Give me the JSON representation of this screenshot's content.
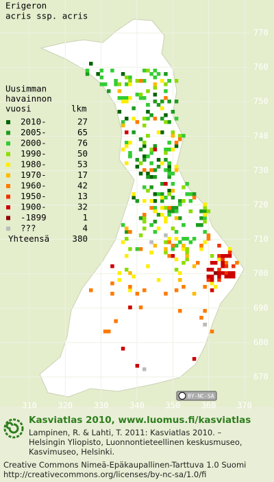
{
  "map": {
    "title": [
      "Erigeron",
      "acris ssp. acris"
    ],
    "legend": {
      "heading": [
        "Uusimman",
        "havainnon",
        "vuosi"
      ],
      "count_heading": "lkm",
      "items": [
        {
          "period": "2010-",
          "count": 27,
          "color": "#006400"
        },
        {
          "period": "2005-",
          "count": 65,
          "color": "#1f9a1f"
        },
        {
          "period": "2000-",
          "count": 76,
          "color": "#33cc33"
        },
        {
          "period": "1990-",
          "count": 50,
          "color": "#8ddc00"
        },
        {
          "period": "1980-",
          "count": 53,
          "color": "#ffee00"
        },
        {
          "period": "1970-",
          "count": 17,
          "color": "#ffbb00"
        },
        {
          "period": "1960-",
          "count": 42,
          "color": "#ff7a00"
        },
        {
          "period": "1950-",
          "count": 13,
          "color": "#ee3300"
        },
        {
          "period": "1900-",
          "count": 32,
          "color": "#cc0000"
        },
        {
          "period": "-1899",
          "count": 1,
          "color": "#8b0000"
        },
        {
          "period": "???",
          "count": 4,
          "color": "#bbbbbb"
        }
      ],
      "total_label": "Yhteensä",
      "total": 380
    },
    "yticks": [
      770,
      760,
      750,
      740,
      730,
      720,
      710,
      700,
      690,
      680,
      670
    ],
    "xticks": [
      310,
      320,
      330,
      340,
      350,
      360,
      370
    ],
    "license_badge": "BY-NC-SA"
  },
  "footer": {
    "brand": "Kasviatlas 2010, www.luomus.fi/kasviatlas",
    "citation": [
      "Lampinen, R. & Lahti, T. 2011: Kasviatlas 2010. –",
      "Helsingin Yliopisto, Luonnontieteellinen keskusmuseo,",
      "Kasvimuseo, Helsinki."
    ],
    "license": [
      "Creative Commons Nimeä-Epäkaupallinen-Tarttuva 1.0 Suomi",
      "http://creativecommons.org/licenses/by-nc-sa/1.0/fi"
    ]
  }
}
